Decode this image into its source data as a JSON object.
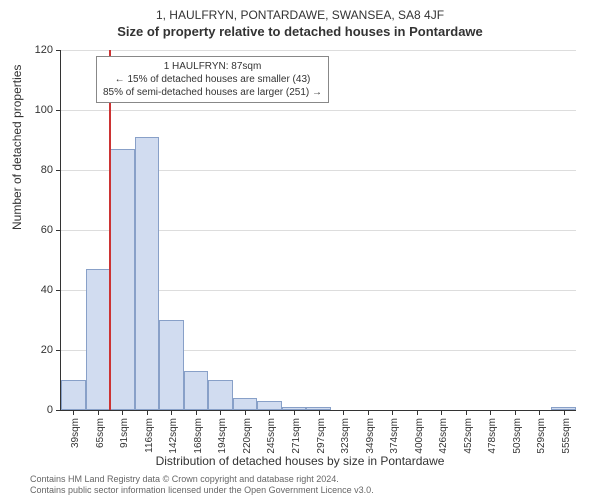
{
  "title_line1": "1, HAULFRYN, PONTARDAWE, SWANSEA, SA8 4JF",
  "title_line2": "Size of property relative to detached houses in Pontardawe",
  "y_axis_title": "Number of detached properties",
  "x_axis_title": "Distribution of detached houses by size in Pontardawe",
  "footer_line1": "Contains HM Land Registry data © Crown copyright and database right 2024.",
  "footer_line2": "Contains public sector information licensed under the Open Government Licence v3.0.",
  "chart": {
    "type": "histogram",
    "background_color": "#ffffff",
    "grid_color": "#dddddd",
    "axis_color": "#333333",
    "bar_fill": "#d1dcf0",
    "bar_border": "#88a0c8",
    "marker_color": "#cc3333",
    "ylim": [
      0,
      120
    ],
    "ytick_step": 20,
    "yticks": [
      0,
      20,
      40,
      60,
      80,
      100,
      120
    ],
    "x_labels": [
      "39sqm",
      "65sqm",
      "91sqm",
      "116sqm",
      "142sqm",
      "168sqm",
      "194sqm",
      "220sqm",
      "245sqm",
      "271sqm",
      "297sqm",
      "323sqm",
      "349sqm",
      "374sqm",
      "400sqm",
      "426sqm",
      "452sqm",
      "478sqm",
      "503sqm",
      "529sqm",
      "555sqm"
    ],
    "values": [
      10,
      47,
      87,
      91,
      30,
      13,
      10,
      4,
      3,
      1,
      1,
      0,
      0,
      0,
      0,
      0,
      0,
      0,
      0,
      0,
      1
    ],
    "marker_position_ratio": 0.093
  },
  "info_box": {
    "line1": "1 HAULFRYN: 87sqm",
    "line2": "← 15% of detached houses are smaller (43)",
    "line3": "85% of semi-detached houses are larger (251) →"
  }
}
